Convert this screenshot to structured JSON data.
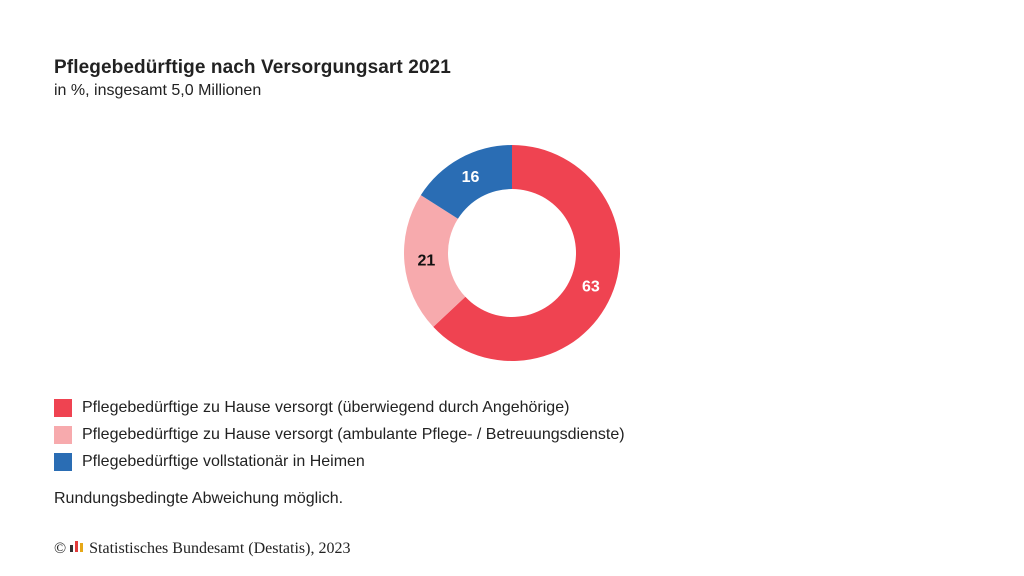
{
  "chart_data": {
    "type": "pie",
    "title": "Pflegebedürftige nach Versorgungsart 2021",
    "subtitle": "in %, insgesamt 5,0 Millionen",
    "categories": [
      "Pflegebedürftige zu Hause versorgt (überwiegend durch Angehörige)",
      "Pflegebedürftige zu Hause versorgt (ambulante Pflege- / Betreuungsdienste)",
      "Pflegebedürftige vollstationär in Heimen"
    ],
    "values": [
      63,
      21,
      16
    ],
    "labels": [
      "63",
      "21",
      "16"
    ],
    "colors": [
      "#ef4351",
      "#f7aaad",
      "#2a6db4"
    ],
    "label_colors": [
      "#ffffff",
      "#111111",
      "#ffffff"
    ],
    "donut": true,
    "legend_position": "bottom-left"
  },
  "note": "Rundungsbedingte Abweichung möglich.",
  "footer": {
    "copyright_symbol": "©",
    "text": "Statistisches Bundesamt (Destatis), 2023"
  }
}
